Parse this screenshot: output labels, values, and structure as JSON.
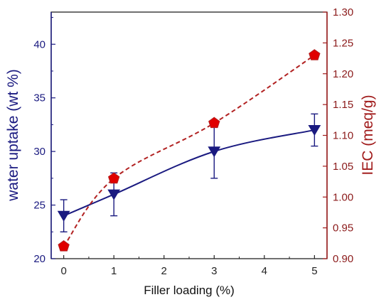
{
  "chart_data": {
    "type": "line",
    "title": "",
    "xlabel": "Filler loading (%)",
    "ylabel_left": "water uptake (wt %)",
    "ylabel_right": "IEC  (meq/g)",
    "x_ticks": [
      "0",
      "1",
      "2",
      "3",
      "4",
      "5"
    ],
    "xlim": [
      -0.25,
      5.25
    ],
    "ylim_left": [
      20,
      43
    ],
    "ylim_right": [
      0.9,
      1.3
    ],
    "y_ticks_left": [
      "20",
      "25",
      "30",
      "35",
      "40"
    ],
    "y_ticks_right": [
      "0.90",
      "0.95",
      "1.00",
      "1.05",
      "1.10",
      "1.15",
      "1.20",
      "1.25",
      "1.30"
    ],
    "grid": false,
    "legend": "none",
    "series": [
      {
        "axis": "left",
        "marker": "triangle-down",
        "line": "solid",
        "color": "#1a1a80",
        "x": [
          0,
          1,
          3,
          5
        ],
        "values": [
          24.0,
          26.0,
          30.0,
          32.0
        ],
        "error": [
          1.5,
          2.0,
          2.5,
          1.5
        ]
      },
      {
        "axis": "right",
        "marker": "pentagon",
        "line": "dashed",
        "color": "#b22222",
        "marker_fill": "#e00000",
        "x": [
          0,
          1,
          3,
          5
        ],
        "values": [
          0.92,
          1.03,
          1.12,
          1.23
        ]
      }
    ]
  }
}
